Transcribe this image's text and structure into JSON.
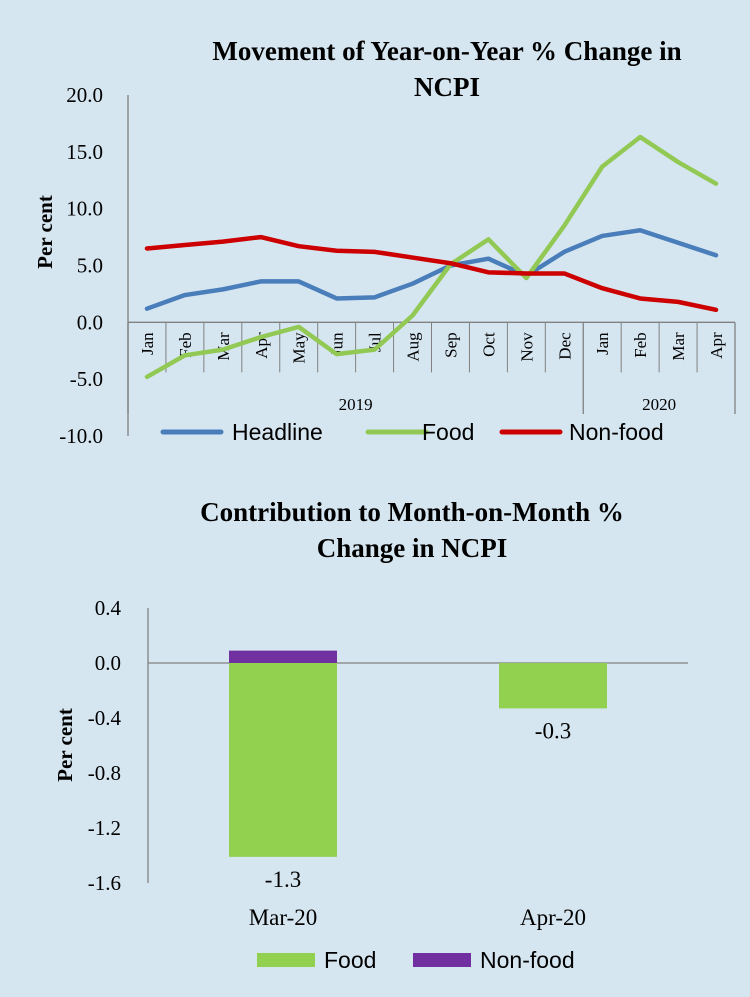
{
  "chart_data": [
    {
      "type": "line",
      "title_line1": "Movement of Year-on-Year % Change in",
      "title_line2": "NCPI",
      "ylabel": "Per cent",
      "ylim": [
        -10,
        20
      ],
      "yticks": [
        "20.0",
        "15.0",
        "10.0",
        "5.0",
        "0.0",
        "-5.0",
        "-10.0"
      ],
      "categories": [
        "Jan",
        "Feb",
        "Mar",
        "Apr",
        "May",
        "Jun",
        "Jul",
        "Aug",
        "Sep",
        "Oct",
        "Nov",
        "Dec",
        "Jan",
        "Feb",
        "Mar",
        "Apr"
      ],
      "year_groups": [
        {
          "label": "2019",
          "span": 12
        },
        {
          "label": "2020",
          "span": 4
        }
      ],
      "series": [
        {
          "name": "Headline",
          "color": "#4a7ebb",
          "values": [
            1.2,
            2.4,
            2.9,
            3.6,
            3.6,
            2.1,
            2.2,
            3.4,
            5.0,
            5.6,
            4.1,
            6.2,
            7.6,
            8.1,
            7.0,
            5.9
          ]
        },
        {
          "name": "Food",
          "color": "#92c954",
          "values": [
            -4.8,
            -2.9,
            -2.4,
            -1.3,
            -0.4,
            -2.8,
            -2.4,
            0.6,
            5.1,
            7.3,
            3.9,
            8.5,
            13.7,
            16.3,
            14.1,
            12.2
          ]
        },
        {
          "name": "Non-food",
          "color": "#cc0000",
          "values": [
            6.5,
            6.8,
            7.1,
            7.5,
            6.7,
            6.3,
            6.2,
            5.7,
            5.2,
            4.4,
            4.3,
            4.3,
            3.0,
            2.1,
            1.8,
            1.1
          ]
        }
      ],
      "legend_position": "bottom"
    },
    {
      "type": "bar",
      "stacked": true,
      "title_line1": "Contribution to Month-on-Month %",
      "title_line2": "Change in NCPI",
      "ylabel": "Per cent",
      "ylim": [
        -1.6,
        0.4
      ],
      "yticks": [
        "0.4",
        "0.0",
        "-0.4",
        "-0.8",
        "-1.2",
        "-1.6"
      ],
      "categories": [
        "Mar-20",
        "Apr-20"
      ],
      "series": [
        {
          "name": "Food",
          "color": "#92d050",
          "values": [
            -1.41,
            -0.33
          ]
        },
        {
          "name": "Non-food",
          "color": "#7030a0",
          "values": [
            0.09,
            0.0
          ]
        }
      ],
      "data_labels": [
        "-1.3",
        "-0.3"
      ],
      "legend_position": "bottom"
    }
  ]
}
